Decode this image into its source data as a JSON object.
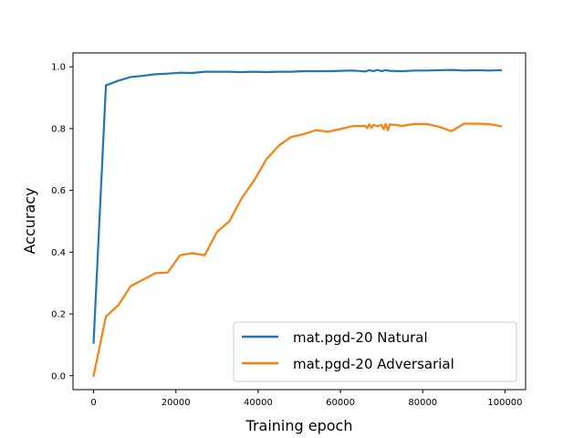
{
  "chart_data": {
    "type": "line",
    "title": "",
    "xlabel": "Training epoch",
    "ylabel": "Accuracy",
    "xlim": [
      -5000,
      105000
    ],
    "ylim": [
      -0.045,
      1.045
    ],
    "xticks": [
      0,
      20000,
      40000,
      60000,
      80000,
      100000
    ],
    "yticks": [
      0.0,
      0.2,
      0.4,
      0.6,
      0.8,
      1.0
    ],
    "xtick_labels": [
      "0",
      "20000",
      "40000",
      "60000",
      "80000",
      "100000"
    ],
    "ytick_labels": [
      "0.0",
      "0.2",
      "0.4",
      "0.6",
      "0.8",
      "1.0"
    ],
    "grid": false,
    "legend_position": "bottom-right",
    "series": [
      {
        "name": "mat.pgd-20 Natural",
        "color": "#1f77b4",
        "points": [
          [
            0,
            0.107
          ],
          [
            3000,
            0.94
          ],
          [
            6000,
            0.955
          ],
          [
            9000,
            0.967
          ],
          [
            12000,
            0.971
          ],
          [
            15000,
            0.976
          ],
          [
            18000,
            0.978
          ],
          [
            21000,
            0.981
          ],
          [
            24000,
            0.98
          ],
          [
            27000,
            0.984
          ],
          [
            30000,
            0.984
          ],
          [
            33000,
            0.984
          ],
          [
            36000,
            0.983
          ],
          [
            39000,
            0.984
          ],
          [
            42000,
            0.983
          ],
          [
            45000,
            0.984
          ],
          [
            48000,
            0.984
          ],
          [
            51000,
            0.986
          ],
          [
            54000,
            0.986
          ],
          [
            57000,
            0.986
          ],
          [
            60000,
            0.987
          ],
          [
            63000,
            0.988
          ],
          [
            66000,
            0.985
          ],
          [
            67000,
            0.989
          ],
          [
            68000,
            0.986
          ],
          [
            69000,
            0.99
          ],
          [
            70000,
            0.986
          ],
          [
            71000,
            0.989
          ],
          [
            72000,
            0.987
          ],
          [
            75000,
            0.986
          ],
          [
            78000,
            0.988
          ],
          [
            81000,
            0.988
          ],
          [
            84000,
            0.989
          ],
          [
            87000,
            0.99
          ],
          [
            90000,
            0.988
          ],
          [
            93000,
            0.989
          ],
          [
            96000,
            0.988
          ],
          [
            99000,
            0.989
          ]
        ]
      },
      {
        "name": "mat.pgd-20 Adversarial",
        "color": "#ff7f0e",
        "points": [
          [
            0,
            0.0
          ],
          [
            3000,
            0.192
          ],
          [
            6000,
            0.228
          ],
          [
            9000,
            0.29
          ],
          [
            12000,
            0.311
          ],
          [
            15000,
            0.332
          ],
          [
            18000,
            0.334
          ],
          [
            21000,
            0.39
          ],
          [
            24000,
            0.397
          ],
          [
            27000,
            0.39
          ],
          [
            30000,
            0.466
          ],
          [
            33000,
            0.5
          ],
          [
            36000,
            0.575
          ],
          [
            39000,
            0.632
          ],
          [
            42000,
            0.701
          ],
          [
            45000,
            0.745
          ],
          [
            48000,
            0.773
          ],
          [
            51000,
            0.782
          ],
          [
            54000,
            0.795
          ],
          [
            57000,
            0.79
          ],
          [
            60000,
            0.799
          ],
          [
            63000,
            0.808
          ],
          [
            66000,
            0.809
          ],
          [
            66500,
            0.802
          ],
          [
            67000,
            0.814
          ],
          [
            67500,
            0.803
          ],
          [
            68000,
            0.812
          ],
          [
            69000,
            0.808
          ],
          [
            70000,
            0.812
          ],
          [
            70500,
            0.798
          ],
          [
            71000,
            0.815
          ],
          [
            71500,
            0.795
          ],
          [
            72000,
            0.814
          ],
          [
            75000,
            0.809
          ],
          [
            78000,
            0.815
          ],
          [
            81000,
            0.815
          ],
          [
            84000,
            0.806
          ],
          [
            87000,
            0.792
          ],
          [
            90000,
            0.816
          ],
          [
            93000,
            0.816
          ],
          [
            96000,
            0.815
          ],
          [
            99000,
            0.808
          ]
        ]
      }
    ]
  }
}
